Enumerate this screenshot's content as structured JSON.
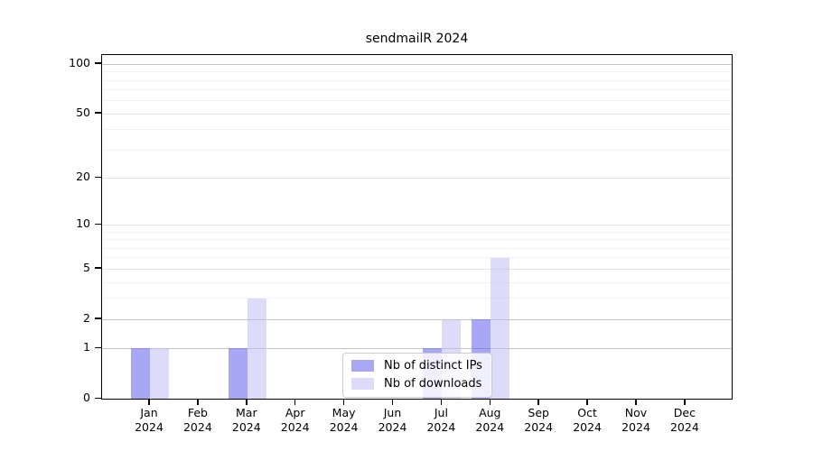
{
  "chart_data": {
    "type": "bar",
    "title": "sendmailR 2024",
    "categories": [
      "Jan",
      "Feb",
      "Mar",
      "Apr",
      "May",
      "Jun",
      "Jul",
      "Aug",
      "Sep",
      "Oct",
      "Nov",
      "Dec"
    ],
    "year_label": "2024",
    "series": [
      {
        "name": "Nb of distinct IPs",
        "color": "#a8a8f5",
        "bar_rgba": "rgba(80,80,235,0.5)",
        "values": [
          1,
          0,
          1,
          0,
          0,
          0,
          1,
          2,
          0,
          0,
          0,
          0
        ]
      },
      {
        "name": "Nb of downloads",
        "color": "#dcdcfa",
        "bar_rgba": "rgba(185,185,245,0.5)",
        "values": [
          1,
          0,
          3,
          0,
          0,
          0,
          2,
          6,
          0,
          0,
          0,
          0
        ]
      }
    ],
    "yticks": [
      0,
      1,
      2,
      5,
      10,
      20,
      50,
      100
    ],
    "y_scale": "log10(1+x)",
    "ylim": [
      0,
      110
    ],
    "grid": "horizontal",
    "legend_position": "inside-bottom-center",
    "gridline_minor_values": [
      3,
      4,
      6,
      7,
      8,
      9,
      30,
      40,
      60,
      70,
      80,
      90
    ],
    "gridline_mid_values": [
      5,
      10,
      20,
      50
    ],
    "gridline_major_values": [
      1,
      2,
      100
    ],
    "grid_minor_color": "#f1f1f1",
    "grid_mid_color": "#e3e3e3",
    "grid_major_color": "#c4c4c4",
    "axis_color": "#000000",
    "background_color": "#ffffff"
  }
}
